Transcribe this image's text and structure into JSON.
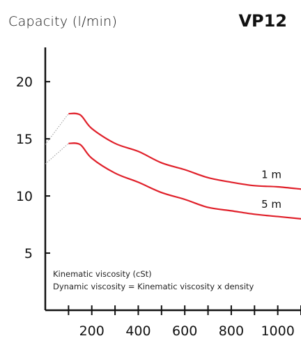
{
  "chart_data": {
    "type": "line",
    "model": "VP12",
    "ylabel": "Capacity (l/min)",
    "xlabel": "",
    "xlim": [
      0,
      1100
    ],
    "ylim": [
      0,
      23
    ],
    "x_ticks": [
      200,
      400,
      600,
      800,
      1000
    ],
    "y_ticks": [
      5,
      10,
      15,
      20
    ],
    "series": [
      {
        "name": "1 m",
        "color": "#e0202a",
        "points": [
          [
            100,
            17.2
          ],
          [
            150,
            17.1
          ],
          [
            200,
            15.9
          ],
          [
            300,
            14.6
          ],
          [
            400,
            13.9
          ],
          [
            500,
            12.9
          ],
          [
            600,
            12.3
          ],
          [
            700,
            11.6
          ],
          [
            800,
            11.2
          ],
          [
            900,
            10.9
          ],
          [
            1000,
            10.8
          ],
          [
            1100,
            10.6
          ]
        ],
        "dotted_start": [
          [
            0,
            14.5
          ],
          [
            100,
            17.2
          ]
        ]
      },
      {
        "name": "5 m",
        "color": "#e0202a",
        "points": [
          [
            100,
            14.6
          ],
          [
            150,
            14.5
          ],
          [
            200,
            13.3
          ],
          [
            300,
            12.0
          ],
          [
            400,
            11.2
          ],
          [
            500,
            10.3
          ],
          [
            600,
            9.7
          ],
          [
            700,
            9.0
          ],
          [
            800,
            8.7
          ],
          [
            900,
            8.4
          ],
          [
            1000,
            8.2
          ],
          [
            1100,
            8.0
          ]
        ],
        "dotted_start": [
          [
            0,
            12.8
          ],
          [
            100,
            14.6
          ]
        ]
      }
    ],
    "notes": [
      "Kinematic viscosity (cSt)",
      "Dynamic viscosity = Kinematic viscosity x density"
    ]
  }
}
